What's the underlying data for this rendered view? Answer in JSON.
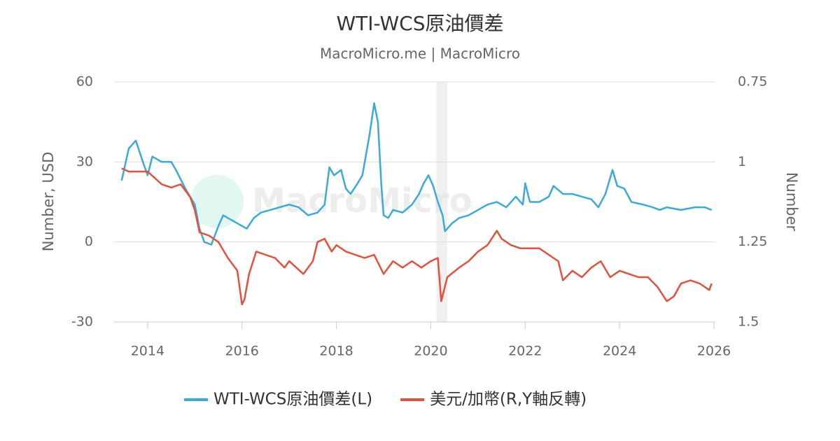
{
  "chart_data": {
    "type": "line",
    "title": "WTI-WCS原油價差",
    "subtitle": "MacroMicro.me | MacroMicro",
    "watermark": "MacroMicro",
    "ylabel": "Number, USD",
    "y2label": "Number",
    "xlim": [
      2013.29,
      2026.03
    ],
    "xticks": [
      2014,
      2016,
      2018,
      2020,
      2022,
      2024,
      2026
    ],
    "ylim": [
      -30,
      60
    ],
    "yticks": [
      -30,
      0,
      30,
      60
    ],
    "y2lim": [
      1.5,
      0.75
    ],
    "y2ticks": [
      1.5,
      1.25,
      1,
      0.75
    ],
    "grid": true,
    "legend": "bottom",
    "shade": {
      "x": [
        2020.12,
        2020.35
      ],
      "color": "#f0f0f0"
    },
    "series": [
      {
        "name": "WTI-WCS原油價差(L)",
        "color": "#3aaad8",
        "x": [
          2013.45,
          2013.6,
          2013.75,
          2013.9,
          2014.0,
          2014.1,
          2014.3,
          2014.5,
          2014.6,
          2014.8,
          2015.0,
          2015.1,
          2015.2,
          2015.35,
          2015.5,
          2015.6,
          2015.8,
          2016.0,
          2016.1,
          2016.25,
          2016.4,
          2016.6,
          2016.8,
          2017.0,
          2017.2,
          2017.4,
          2017.6,
          2017.75,
          2017.85,
          2017.95,
          2018.1,
          2018.2,
          2018.3,
          2018.45,
          2018.55,
          2018.7,
          2018.8,
          2018.88,
          2018.95,
          2019.0,
          2019.1,
          2019.2,
          2019.4,
          2019.6,
          2019.75,
          2019.85,
          2019.95,
          2020.05,
          2020.15,
          2020.25,
          2020.3,
          2020.45,
          2020.6,
          2020.8,
          2021.0,
          2021.2,
          2021.4,
          2021.6,
          2021.8,
          2021.95,
          2022.0,
          2022.1,
          2022.3,
          2022.5,
          2022.6,
          2022.8,
          2023.0,
          2023.2,
          2023.4,
          2023.55,
          2023.7,
          2023.85,
          2023.95,
          2024.1,
          2024.25,
          2024.5,
          2024.7,
          2024.85,
          2025.0,
          2025.3,
          2025.6,
          2025.8,
          2025.95
        ],
        "values": [
          23,
          35,
          38,
          30,
          25,
          32,
          30,
          30,
          27,
          20,
          14,
          5,
          0,
          -1,
          6,
          10,
          8,
          6,
          5,
          9,
          11,
          12,
          13,
          14,
          13,
          10,
          11,
          14,
          28,
          25,
          27,
          20,
          18,
          22,
          25,
          40,
          52,
          45,
          22,
          10,
          9,
          12,
          11,
          14,
          18,
          22,
          25,
          21,
          15,
          10,
          4,
          7,
          9,
          10,
          12,
          14,
          15,
          13,
          17,
          14,
          22,
          15,
          15,
          17,
          21,
          18,
          18,
          17,
          16,
          13,
          18,
          27,
          21,
          20,
          15,
          14,
          13,
          12,
          13,
          12,
          13,
          13,
          12
        ]
      },
      {
        "name": "美元/加幣(R,Y軸反轉)",
        "color": "#e4503a",
        "axis": "y2",
        "x": [
          2013.45,
          2013.6,
          2014.0,
          2014.3,
          2014.5,
          2014.7,
          2014.9,
          2015.0,
          2015.1,
          2015.3,
          2015.5,
          2015.7,
          2015.9,
          2016.0,
          2016.05,
          2016.15,
          2016.3,
          2016.5,
          2016.7,
          2016.9,
          2017.0,
          2017.3,
          2017.5,
          2017.6,
          2017.75,
          2017.9,
          2018.0,
          2018.2,
          2018.4,
          2018.6,
          2018.8,
          2019.0,
          2019.2,
          2019.4,
          2019.6,
          2019.8,
          2020.0,
          2020.15,
          2020.22,
          2020.35,
          2020.6,
          2020.8,
          2021.0,
          2021.2,
          2021.4,
          2021.5,
          2021.7,
          2021.9,
          2022.1,
          2022.3,
          2022.5,
          2022.7,
          2022.8,
          2023.0,
          2023.2,
          2023.4,
          2023.6,
          2023.8,
          2024.0,
          2024.2,
          2024.4,
          2024.6,
          2024.8,
          2025.0,
          2025.15,
          2025.3,
          2025.5,
          2025.7,
          2025.9,
          2025.95
        ],
        "values": [
          1.02,
          1.03,
          1.03,
          1.07,
          1.08,
          1.07,
          1.11,
          1.15,
          1.22,
          1.23,
          1.25,
          1.3,
          1.34,
          1.445,
          1.43,
          1.35,
          1.28,
          1.29,
          1.3,
          1.33,
          1.31,
          1.35,
          1.31,
          1.25,
          1.24,
          1.28,
          1.26,
          1.28,
          1.29,
          1.3,
          1.29,
          1.35,
          1.31,
          1.33,
          1.31,
          1.33,
          1.31,
          1.3,
          1.435,
          1.36,
          1.33,
          1.31,
          1.28,
          1.26,
          1.215,
          1.24,
          1.26,
          1.27,
          1.27,
          1.27,
          1.29,
          1.31,
          1.37,
          1.34,
          1.36,
          1.33,
          1.31,
          1.36,
          1.34,
          1.35,
          1.36,
          1.36,
          1.39,
          1.435,
          1.42,
          1.38,
          1.37,
          1.38,
          1.4,
          1.38
        ]
      }
    ]
  }
}
